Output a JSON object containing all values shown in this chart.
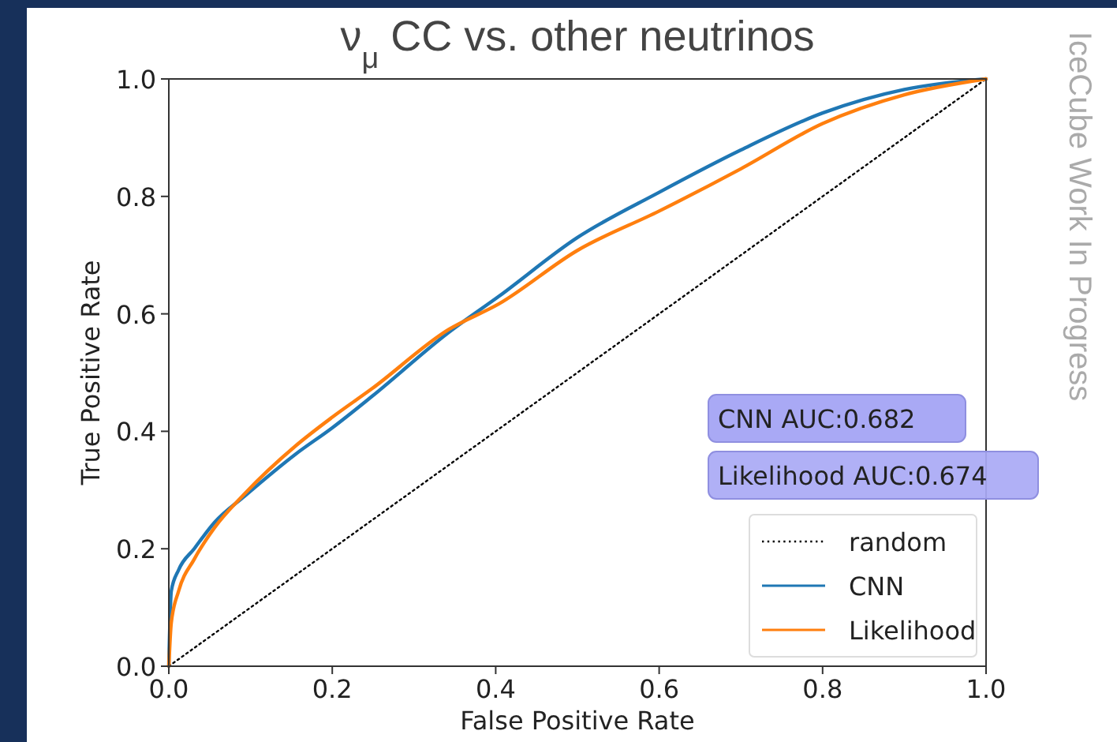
{
  "chart_data": {
    "type": "line",
    "title": "ν$_{μ}$ CC vs. other neutrinos",
    "xlabel": "False Positive Rate",
    "ylabel": "True Positive Rate",
    "xlim": [
      0,
      1
    ],
    "ylim": [
      0,
      1
    ],
    "xticks": [
      {
        "value": 0,
        "label": "0.0"
      },
      0.2,
      0.4,
      0.6,
      0.8,
      {
        "value": 1,
        "label": "1.0"
      }
    ],
    "yticks": [
      {
        "value": 0,
        "label": "0.0"
      },
      0.2,
      0.4,
      0.6,
      0.8,
      {
        "value": 1,
        "label": "1.0"
      }
    ],
    "grid": false,
    "legend": "bottom right",
    "marker": "none",
    "series": [
      {
        "name": "random",
        "color": "#000000",
        "line_style": "dotted",
        "x": [
          0,
          1
        ],
        "values": [
          0,
          1
        ]
      },
      {
        "name": "CNN",
        "color": "#1f77b4",
        "line_style": "solid",
        "x": [
          0,
          0.003,
          0.012,
          0.031,
          0.056,
          0.093,
          0.155,
          0.2,
          0.249,
          0.342,
          0.404,
          0.5,
          0.6,
          0.7,
          0.8,
          0.9,
          1
        ],
        "values": [
          0,
          0.128,
          0.164,
          0.2,
          0.245,
          0.29,
          0.361,
          0.406,
          0.46,
          0.568,
          0.63,
          0.73,
          0.807,
          0.879,
          0.942,
          0.982,
          1
        ]
      },
      {
        "name": "Likelihood",
        "color": "#ff7f0e",
        "line_style": "solid",
        "x": [
          0,
          0.003,
          0.012,
          0.031,
          0.056,
          0.093,
          0.155,
          0.2,
          0.249,
          0.342,
          0.404,
          0.5,
          0.6,
          0.7,
          0.8,
          0.9,
          1
        ],
        "values": [
          0,
          0.074,
          0.128,
          0.182,
          0.236,
          0.294,
          0.375,
          0.424,
          0.473,
          0.573,
          0.617,
          0.708,
          0.775,
          0.847,
          0.924,
          0.973,
          1
        ]
      }
    ],
    "annotations": [
      "CNN AUC:0.682",
      "Likelihood AUC:0.674",
      "IceCube Work In Progress"
    ]
  }
}
